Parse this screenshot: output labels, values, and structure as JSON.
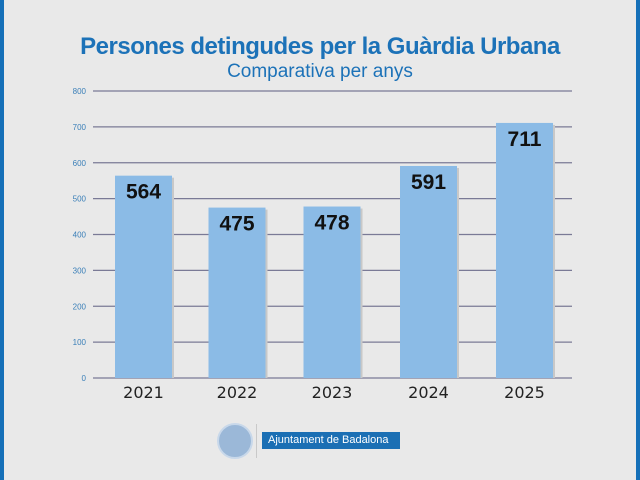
{
  "chart_data": {
    "type": "bar",
    "title": "Persones detingudes per la Guàrdia Urbana",
    "subtitle": "Comparativa per anys",
    "categories": [
      "2021",
      "2022",
      "2023",
      "2024",
      "2025"
    ],
    "values": [
      564,
      475,
      478,
      591,
      711
    ],
    "data_labels": [
      "564",
      "475",
      "478",
      "591",
      "711"
    ],
    "ylim": [
      0,
      800
    ],
    "yticks": [
      0,
      100,
      200,
      300,
      400,
      500,
      600,
      700,
      800
    ],
    "grid": true,
    "xlabel": "",
    "ylabel": "",
    "colors": {
      "bar": "#8bbbe6",
      "title": "#1c72b8",
      "tick": "#3a7fb8",
      "grid": "#7a7a96"
    }
  },
  "footer": {
    "logo_text": "Ajuntament de Badalona"
  }
}
